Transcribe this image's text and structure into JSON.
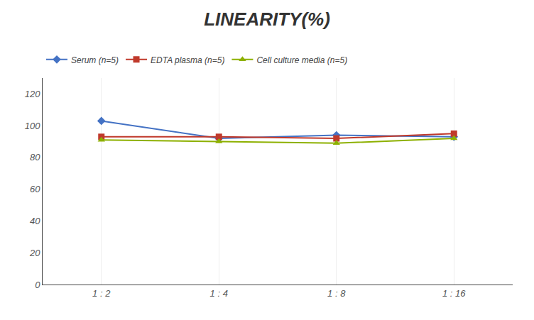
{
  "chart_data": {
    "type": "line",
    "title": "LINEARITY(%)",
    "categories": [
      "1 : 2",
      "1 : 4",
      "1 : 8",
      "1 : 16"
    ],
    "series": [
      {
        "name": "Serum (n=5)",
        "color": "#4472C4",
        "marker": "diamond",
        "values": [
          103,
          92,
          94,
          93
        ]
      },
      {
        "name": "EDTA plasma (n=5)",
        "color": "#C0392B",
        "marker": "square",
        "values": [
          93,
          93,
          92,
          95
        ]
      },
      {
        "name": "Cell culture media (n=5)",
        "color": "#8DB000",
        "marker": "triangle-up",
        "values": [
          91,
          90,
          89,
          92
        ]
      }
    ],
    "ylim": [
      0,
      130
    ],
    "yticks": [
      0,
      20,
      40,
      60,
      80,
      100,
      120
    ],
    "grid": "x",
    "legend": "top"
  }
}
